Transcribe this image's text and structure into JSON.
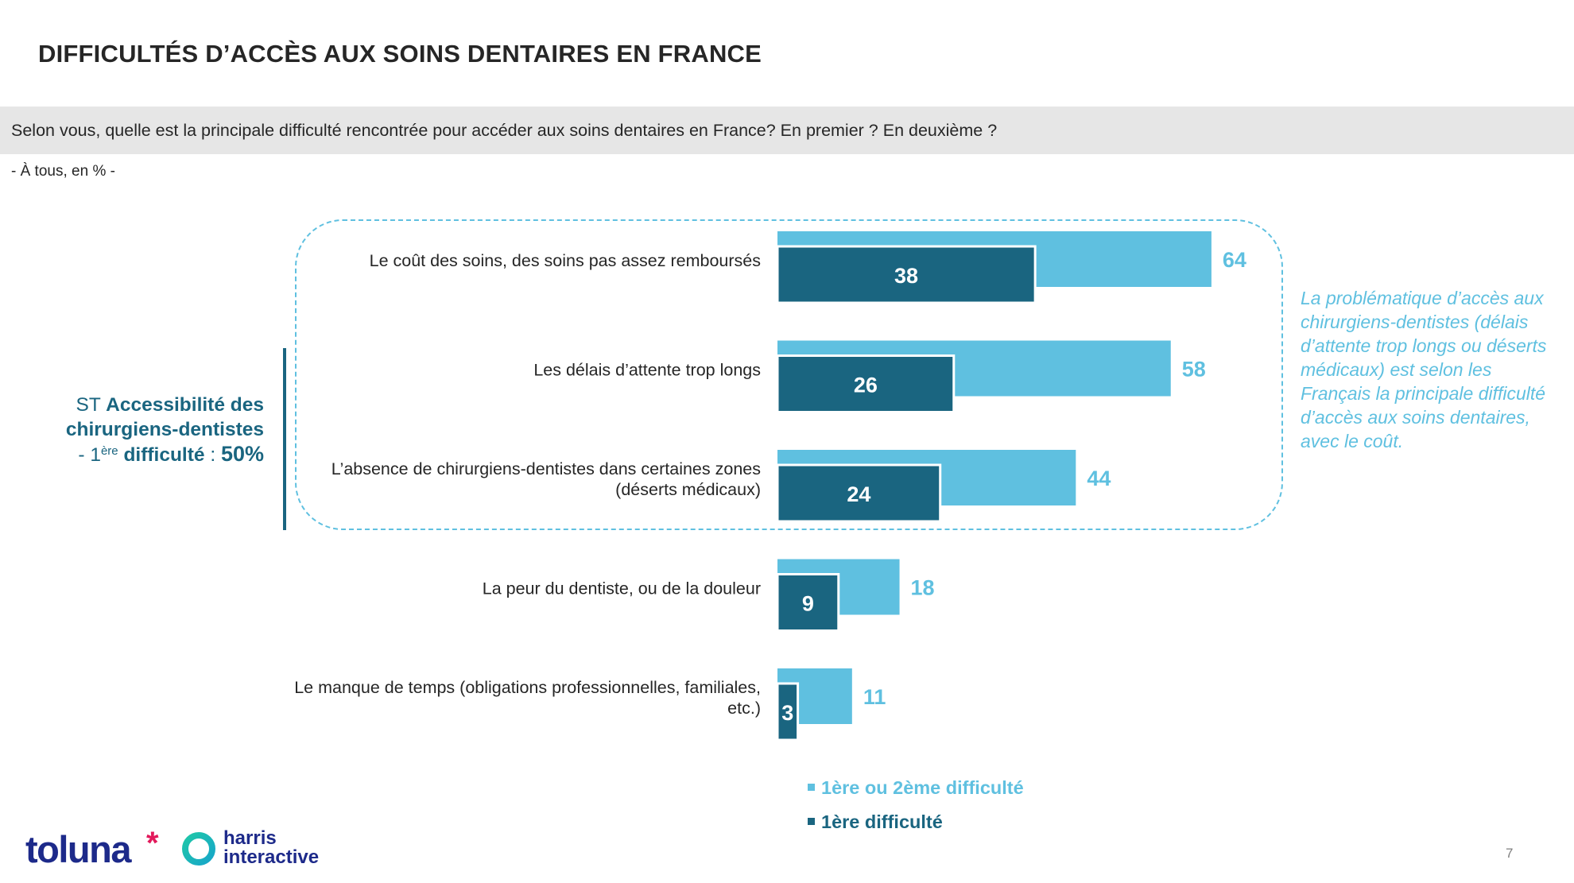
{
  "title": "DIFFICULTÉS D’ACCÈS AUX SOINS DENTAIRES EN FRANCE",
  "question": "Selon vous, quelle est la principale difficulté rencontrée pour accéder aux soins dentaires en France? En premier ? En deuxième ?",
  "base": "- À tous, en % -",
  "subtotal": {
    "prefix": "ST ",
    "label": "Accessibilité des chirurgiens-dentistes",
    "dash": "- 1",
    "sup": "ère",
    "label2": " difficulté",
    "colon": " : ",
    "value": "50%"
  },
  "note": "La problématique d’accès aux chirurgiens-dentistes (délais d’attente trop longs ou déserts médicaux) est selon les Français la principale difficulté d’accès aux soins dentaires, avec le coût.",
  "legend": {
    "series1": "1ère ou 2ème difficulté",
    "series2": "1ère difficulté"
  },
  "logo": {
    "brand1": "toluna",
    "star": "*",
    "brand2_line1": "harris",
    "brand2_line2": "interactive"
  },
  "page_number": "7",
  "colors": {
    "light": "#5fc0e0",
    "dark": "#1a6580",
    "text": "#262626"
  },
  "chart_data": {
    "type": "bar",
    "orientation": "horizontal",
    "categories": [
      [
        "Le coût des soins, des soins pas assez remboursés"
      ],
      [
        "Les délais d’attente trop longs"
      ],
      [
        "L’absence de chirurgiens-dentistes dans certaines zones",
        "(déserts médicaux)"
      ],
      [
        "La peur du dentiste, ou de la douleur"
      ],
      [
        "Le manque de temps (obligations professionnelles, familiales,",
        "etc.)"
      ]
    ],
    "series": [
      {
        "name": "1ère ou 2ème difficulté",
        "values": [
          64,
          58,
          44,
          18,
          11
        ]
      },
      {
        "name": "1ère difficulté",
        "values": [
          38,
          26,
          24,
          9,
          3
        ]
      }
    ],
    "xlim": [
      0,
      100
    ],
    "grid": false,
    "legend_position": "bottom"
  }
}
